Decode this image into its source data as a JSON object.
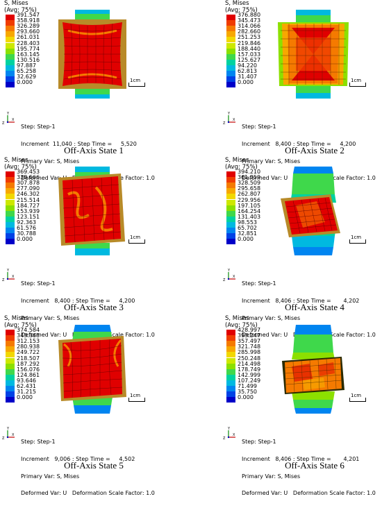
{
  "common": {
    "title_line1": "S, Mises",
    "title_line2": "(Avg: 75%)",
    "scale_label": "1cm",
    "step_line": "Step: Step-1",
    "primary_line": "Primary Var: S, Mises",
    "deformed_prefix": "Deformed Var: U   Deformation Scale Factor:",
    "scale_factor": "1.0",
    "axis_y": "Y",
    "axis_x": "X",
    "axis_z": "Z",
    "colors": [
      "#e00000",
      "#f03c00",
      "#f57a00",
      "#f7a800",
      "#f2d800",
      "#cde800",
      "#8ce000",
      "#3fd84b",
      "#00d2a0",
      "#00b9e0",
      "#0085f0",
      "#0042e6",
      "#0000c8"
    ]
  },
  "panels": [
    {
      "legend_values": [
        "391.547",
        "358.918",
        "326.289",
        "293.660",
        "261.031",
        "228.403",
        "195.774",
        "163.145",
        "130.516",
        "97.887",
        "65.258",
        "32.629",
        "0.000"
      ],
      "increment_line": "Increment  11,040 : Step Time =     5,520",
      "caption": "Off-Axis State 1"
    },
    {
      "legend_values": [
        "376.880",
        "345.473",
        "314.066",
        "282.660",
        "251.253",
        "219.846",
        "188.440",
        "157.033",
        "125.627",
        "94.220",
        "62.813",
        "31.407",
        "0.000"
      ],
      "increment_line": "Increment   8,400 : Step Time =     4,200",
      "caption": "Off-Axis State 2"
    },
    {
      "legend_values": [
        "369.453",
        "338.666",
        "307.878",
        "277.090",
        "246.302",
        "215.514",
        "184.727",
        "153.939",
        "123.151",
        "92.363",
        "61.576",
        "30.788",
        "0.000"
      ],
      "increment_line": "Increment   8,400 : Step Time =     4,200",
      "caption": "Off-Axis State 3"
    },
    {
      "legend_values": [
        "394.210",
        "361.359",
        "328.509",
        "295.658",
        "262.807",
        "229.956",
        "197.105",
        "164.254",
        "131.403",
        "98.553",
        "65.702",
        "32.851",
        "0.000"
      ],
      "increment_line": "Increment   8,406 : Step Time =       4,202",
      "caption": "Off-Axis State 4"
    },
    {
      "legend_values": [
        "374.584",
        "343.368",
        "312.153",
        "280.938",
        "249.722",
        "218.507",
        "187.292",
        "156.076",
        "124.861",
        "93.646",
        "62.431",
        "31.215",
        "0.000"
      ],
      "increment_line": "Increment   9,006 : Step Time =     4,502",
      "caption": "Off-Axis State 5"
    },
    {
      "legend_values": [
        "428.997",
        "393.247",
        "357.497",
        "321.748",
        "285.998",
        "250.248",
        "214.498",
        "178.749",
        "142.999",
        "107.249",
        "71.499",
        "35.750",
        "0.000"
      ],
      "increment_line": "Increment   8,406 : Step Time =       4,201",
      "caption": "Off-Axis State 6"
    }
  ]
}
